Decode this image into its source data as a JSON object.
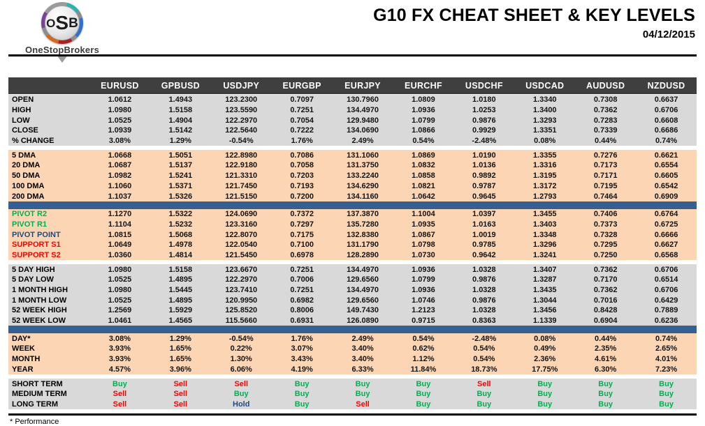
{
  "header": {
    "logo": {
      "mark_o": "O",
      "mark_s": "S",
      "mark_b": "B",
      "brand": "OneStopBrokers"
    },
    "title": "G10 FX CHEAT SHEET & KEY LEVELS",
    "date": "04/12/2015"
  },
  "colors": {
    "header_bg": "#3f3f3f",
    "gray_row": "#d9d9d9",
    "peach_row": "#fcd5b4",
    "blue_divider": "#376092",
    "buy_green": "#00b050",
    "sell_red": "#ff0000",
    "hold_navy": "#1f497d"
  },
  "table": {
    "columns": [
      "EURUSD",
      "GPBUSD",
      "USDJPY",
      "EURGBP",
      "EURJPY",
      "EURCHF",
      "USDCHF",
      "USDCAD",
      "AUDUSD",
      "NZDUSD"
    ],
    "sections": [
      {
        "name": "ohlc",
        "bg": "gray",
        "gap_before": null,
        "signal": false,
        "rows": [
          {
            "label": "OPEN",
            "color": "default",
            "values": [
              "1.0612",
              "1.4943",
              "123.2300",
              "0.7097",
              "130.7960",
              "1.0809",
              "1.0180",
              "1.3340",
              "0.7308",
              "0.6637"
            ]
          },
          {
            "label": "HIGH",
            "color": "default",
            "values": [
              "1.0980",
              "1.5158",
              "123.5590",
              "0.7251",
              "134.4970",
              "1.0936",
              "1.0253",
              "1.3400",
              "0.7362",
              "0.6706"
            ]
          },
          {
            "label": "LOW",
            "color": "default",
            "values": [
              "1.0525",
              "1.4904",
              "122.2970",
              "0.7054",
              "129.9480",
              "1.0799",
              "0.9876",
              "1.3293",
              "0.7283",
              "0.6608"
            ]
          },
          {
            "label": "CLOSE",
            "color": "default",
            "values": [
              "1.0939",
              "1.5142",
              "122.5640",
              "0.7222",
              "134.0690",
              "1.0866",
              "0.9929",
              "1.3351",
              "0.7339",
              "0.6686"
            ]
          },
          {
            "label": "% CHANGE",
            "color": "default",
            "values": [
              "3.08%",
              "1.29%",
              "-0.54%",
              "1.76%",
              "2.49%",
              "0.54%",
              "-2.48%",
              "0.08%",
              "0.44%",
              "0.74%"
            ]
          }
        ]
      },
      {
        "name": "dma",
        "bg": "peach",
        "gap_before": "white",
        "signal": false,
        "rows": [
          {
            "label": "5 DMA",
            "color": "default",
            "values": [
              "1.0668",
              "1.5051",
              "122.8980",
              "0.7086",
              "131.1060",
              "1.0869",
              "1.0190",
              "1.3355",
              "0.7276",
              "0.6621"
            ]
          },
          {
            "label": "20 DMA",
            "color": "default",
            "values": [
              "1.0687",
              "1.5137",
              "122.9180",
              "0.7058",
              "131.3750",
              "1.0832",
              "1.0136",
              "1.3316",
              "0.7173",
              "0.6554"
            ]
          },
          {
            "label": "50 DMA",
            "color": "default",
            "values": [
              "1.0982",
              "1.5241",
              "121.3310",
              "0.7203",
              "133.2240",
              "1.0858",
              "0.9892",
              "1.3195",
              "0.7171",
              "0.6605"
            ]
          },
          {
            "label": "100 DMA",
            "color": "default",
            "values": [
              "1.1060",
              "1.5371",
              "121.7450",
              "0.7193",
              "134.6290",
              "1.0821",
              "0.9787",
              "1.3172",
              "0.7195",
              "0.6542"
            ]
          },
          {
            "label": "200 DMA",
            "color": "default",
            "values": [
              "1.1037",
              "1.5326",
              "121.5150",
              "0.7200",
              "134.1160",
              "1.0642",
              "0.9645",
              "1.2793",
              "0.7464",
              "0.6909"
            ]
          }
        ]
      },
      {
        "name": "pivots",
        "bg": "peach",
        "gap_before": "blue",
        "signal": false,
        "rows": [
          {
            "label": "PIVOT R2",
            "color": "green",
            "values": [
              "1.1270",
              "1.5322",
              "124.0690",
              "0.7372",
              "137.3870",
              "1.1004",
              "1.0397",
              "1.3455",
              "0.7406",
              "0.6764"
            ]
          },
          {
            "label": "PIVOT R1",
            "color": "green",
            "values": [
              "1.1104",
              "1.5232",
              "123.3160",
              "0.7297",
              "135.7280",
              "1.0935",
              "1.0163",
              "1.3403",
              "0.7373",
              "0.6725"
            ]
          },
          {
            "label": "PIVOT POINT",
            "color": "navy",
            "values": [
              "1.0815",
              "1.5068",
              "122.8070",
              "0.7175",
              "132.8380",
              "1.0867",
              "1.0019",
              "1.3348",
              "0.7328",
              "0.6666"
            ]
          },
          {
            "label": "SUPPORT S1",
            "color": "red",
            "values": [
              "1.0649",
              "1.4978",
              "122.0540",
              "0.7100",
              "131.1790",
              "1.0798",
              "0.9785",
              "1.3296",
              "0.7295",
              "0.6627"
            ]
          },
          {
            "label": "SUPPORT S2",
            "color": "red",
            "values": [
              "1.0360",
              "1.4814",
              "121.5450",
              "0.6978",
              "128.2890",
              "1.0730",
              "0.9642",
              "1.3241",
              "0.7250",
              "0.6568"
            ]
          }
        ]
      },
      {
        "name": "ranges",
        "bg": "gray",
        "gap_before": "white",
        "signal": false,
        "rows": [
          {
            "label": "5 DAY HIGH",
            "color": "default",
            "values": [
              "1.0980",
              "1.5158",
              "123.6670",
              "0.7251",
              "134.4970",
              "1.0936",
              "1.0328",
              "1.3407",
              "0.7362",
              "0.6706"
            ]
          },
          {
            "label": "5 DAY LOW",
            "color": "default",
            "values": [
              "1.0525",
              "1.4895",
              "122.2970",
              "0.7006",
              "129.6560",
              "1.0799",
              "0.9876",
              "1.3287",
              "0.7170",
              "0.6514"
            ]
          },
          {
            "label": "1 MONTH HIGH",
            "color": "default",
            "values": [
              "1.0980",
              "1.5445",
              "123.7410",
              "0.7251",
              "134.4970",
              "1.0936",
              "1.0328",
              "1.3435",
              "0.7362",
              "0.6706"
            ]
          },
          {
            "label": "1 MONTH LOW",
            "color": "default",
            "values": [
              "1.0525",
              "1.4895",
              "120.9950",
              "0.6982",
              "129.6560",
              "1.0746",
              "0.9876",
              "1.3044",
              "0.7016",
              "0.6429"
            ]
          },
          {
            "label": "52 WEEK HIGH",
            "color": "default",
            "values": [
              "1.2569",
              "1.5929",
              "125.8520",
              "0.8006",
              "149.7430",
              "1.2123",
              "1.0328",
              "1.3456",
              "0.8428",
              "0.7889"
            ]
          },
          {
            "label": "52 WEEK LOW",
            "color": "default",
            "values": [
              "1.0461",
              "1.4565",
              "115.5660",
              "0.6931",
              "126.0890",
              "0.9715",
              "0.8363",
              "1.1339",
              "0.6904",
              "0.6236"
            ]
          }
        ]
      },
      {
        "name": "performance",
        "bg": "peach",
        "gap_before": "blue",
        "signal": false,
        "rows": [
          {
            "label": "DAY*",
            "color": "default",
            "values": [
              "3.08%",
              "1.29%",
              "-0.54%",
              "1.76%",
              "2.49%",
              "0.54%",
              "-2.48%",
              "0.08%",
              "0.44%",
              "0.74%"
            ]
          },
          {
            "label": "WEEK",
            "color": "default",
            "values": [
              "3.93%",
              "1.65%",
              "0.22%",
              "3.07%",
              "3.40%",
              "0.62%",
              "0.54%",
              "0.49%",
              "2.35%",
              "2.65%"
            ]
          },
          {
            "label": "MONTH",
            "color": "default",
            "values": [
              "3.93%",
              "1.65%",
              "1.30%",
              "3.43%",
              "3.40%",
              "1.12%",
              "0.54%",
              "2.36%",
              "4.61%",
              "4.01%"
            ]
          },
          {
            "label": "YEAR",
            "color": "default",
            "values": [
              "4.57%",
              "3.96%",
              "6.06%",
              "4.19%",
              "6.33%",
              "11.84%",
              "18.73%",
              "17.75%",
              "6.30%",
              "7.23%"
            ]
          }
        ]
      },
      {
        "name": "signals",
        "bg": "gray",
        "gap_before": "white",
        "signal": true,
        "rows": [
          {
            "label": "SHORT TERM",
            "color": "default",
            "values": [
              "Buy",
              "Sell",
              "Sell",
              "Buy",
              "Buy",
              "Buy",
              "Sell",
              "Buy",
              "Buy",
              "Buy"
            ]
          },
          {
            "label": "MEDIUM TERM",
            "color": "default",
            "values": [
              "Sell",
              "Sell",
              "Buy",
              "Buy",
              "Buy",
              "Buy",
              "Buy",
              "Buy",
              "Buy",
              "Buy"
            ]
          },
          {
            "label": "LONG TERM",
            "color": "default",
            "values": [
              "Sell",
              "Sell",
              "Hold",
              "Buy",
              "Sell",
              "Buy",
              "Buy",
              "Buy",
              "Buy",
              "Buy"
            ]
          }
        ]
      }
    ]
  },
  "footnote": "* Performance"
}
